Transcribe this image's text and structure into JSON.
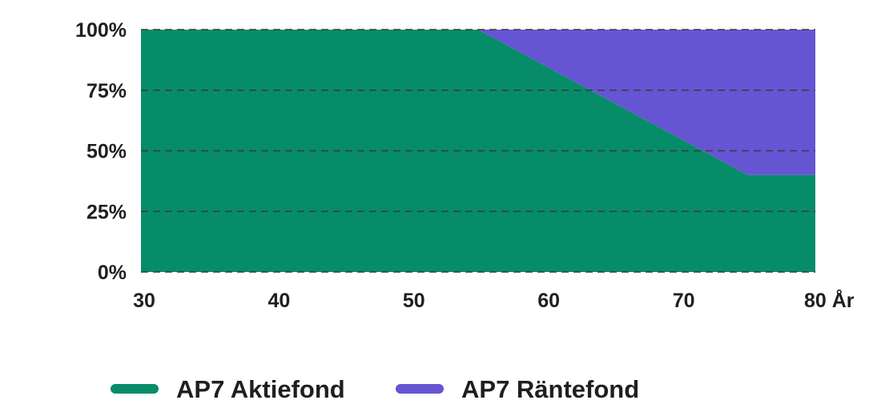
{
  "chart_data": {
    "type": "area",
    "stacked": true,
    "x": [
      30,
      55,
      75,
      80
    ],
    "xlim": [
      30,
      80
    ],
    "ylim": [
      0,
      100
    ],
    "x_ticks": [
      {
        "value": 30,
        "label": "30"
      },
      {
        "value": 40,
        "label": "40"
      },
      {
        "value": 50,
        "label": "50"
      },
      {
        "value": 60,
        "label": "60"
      },
      {
        "value": 70,
        "label": "70"
      },
      {
        "value": 80,
        "label": "80 År"
      }
    ],
    "y_ticks": [
      {
        "value": 0,
        "label": "0%"
      },
      {
        "value": 25,
        "label": "25%"
      },
      {
        "value": 50,
        "label": "50%"
      },
      {
        "value": 75,
        "label": "75%"
      },
      {
        "value": 100,
        "label": "100%"
      }
    ],
    "grid": true,
    "legend_position": "bottom",
    "series": [
      {
        "name": "AP7 Aktiefond",
        "values": [
          100,
          100,
          40,
          40
        ],
        "color": "#078c69"
      },
      {
        "name": "AP7 Räntefond",
        "values": [
          0,
          0,
          60,
          60
        ],
        "color": "#6655d3"
      }
    ]
  }
}
